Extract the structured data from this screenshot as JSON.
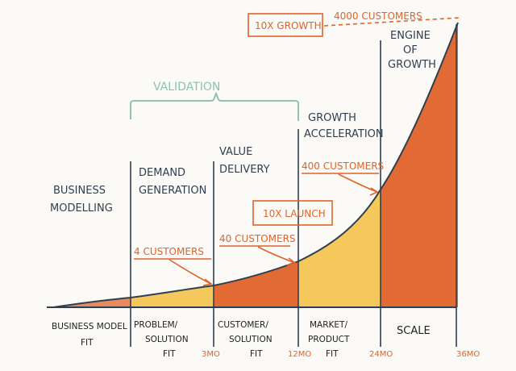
{
  "colors": {
    "ink": "#2f3f4f",
    "orange_fill": "#e26a34",
    "yellow_fill": "#f5c85b",
    "annotation": "#e0632a",
    "validation": "#8fc2b3"
  },
  "chart_data": {
    "type": "area",
    "title": "",
    "curve": "exponential growth curve across stages",
    "stages": [
      {
        "label_line1": "BUSINESS MODEL",
        "label_line2": "FIT"
      },
      {
        "label_line1": "PROBLEM/",
        "label_line2": "SOLUTION",
        "label_line3": "FIT"
      },
      {
        "label_line1": "CUSTOMER/",
        "label_line2": "SOLUTION",
        "label_line3": "FIT"
      },
      {
        "label_line1": "MARKET/",
        "label_line2": "PRODUCT",
        "label_line3": "FIT"
      },
      {
        "label_line1": "SCALE"
      }
    ],
    "time_ticks": [
      "3MO",
      "12MO",
      "24MO",
      "36MO"
    ],
    "section_labels": [
      {
        "line1": "BUSINESS",
        "line2": "MODELLING"
      },
      {
        "line1": "DEMAND",
        "line2": "GENERATION"
      },
      {
        "line1": "VALUE",
        "line2": "DELIVERY"
      },
      {
        "line1": "GROWTH",
        "line2": "ACCELERATION"
      },
      {
        "line1": "ENGINE",
        "line2": "OF",
        "line3": "GROWTH"
      }
    ],
    "validation_label": "VALIDATION",
    "annotations": {
      "customers_4": "4 CUSTOMERS",
      "customers_40": "40 CUSTOMERS",
      "customers_400": "400 CUSTOMERS",
      "customers_4000": "4000 CUSTOMERS",
      "launch_10x": "10X LAUNCH",
      "growth_10x": "10X GROWTH"
    }
  }
}
